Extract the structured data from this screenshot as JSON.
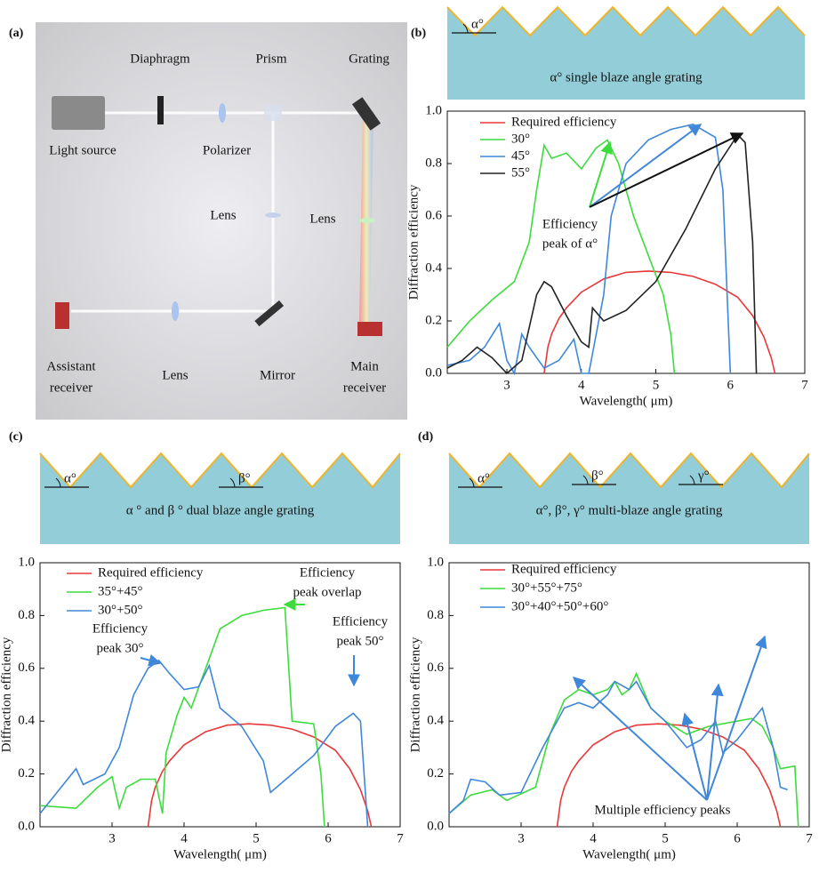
{
  "setup": {
    "panel_label": "(a)",
    "labels": [
      [
        "Diaphragm"
      ],
      [
        "Prism"
      ],
      [
        "Grating"
      ],
      [
        "Light source"
      ],
      [
        "Polarizer"
      ],
      [
        "Lens"
      ],
      [
        "Lens"
      ],
      [
        "Assistant",
        "receiver"
      ],
      [
        "Lens"
      ],
      [
        "Mirror"
      ],
      [
        "Main",
        "receiver"
      ]
    ]
  },
  "chart_data": [
    {
      "type": "line",
      "panel_label": "(b)",
      "diagram": {
        "caption": "α° single blaze angle grating",
        "angle_labels": [
          "α°"
        ]
      },
      "xlabel": "Wavelength( μm)",
      "ylabel": "Diffraction efficiency",
      "xlim": [
        2.2,
        7
      ],
      "xticks": [
        3,
        4,
        5,
        6,
        7
      ],
      "ylim": [
        0,
        1
      ],
      "yticks": [
        {
          "value": 0,
          "label": "0.0"
        },
        0.2,
        0.4,
        0.6,
        0.8,
        {
          "value": 1,
          "label": "1.0"
        }
      ],
      "series": [
        {
          "name": "Required efficiency",
          "color": "#e8383a",
          "x": [
            3.5,
            3.55,
            3.6,
            3.7,
            3.8,
            4.0,
            4.3,
            4.6,
            4.9,
            5.2,
            5.5,
            5.8,
            6.1,
            6.3,
            6.45,
            6.55,
            6.6
          ],
          "values": [
            0,
            0.1,
            0.15,
            0.21,
            0.25,
            0.31,
            0.36,
            0.385,
            0.39,
            0.385,
            0.37,
            0.34,
            0.29,
            0.22,
            0.14,
            0.06,
            0
          ]
        },
        {
          "name": "30°",
          "color": "#3ddc3d",
          "x": [
            2.2,
            2.5,
            2.8,
            3.1,
            3.3,
            3.4,
            3.5,
            3.6,
            3.8,
            4.0,
            4.2,
            4.35,
            4.5,
            4.7,
            4.9,
            5.1,
            5.2,
            5.25
          ],
          "values": [
            0.1,
            0.2,
            0.28,
            0.35,
            0.5,
            0.7,
            0.87,
            0.82,
            0.84,
            0.78,
            0.86,
            0.89,
            0.8,
            0.6,
            0.45,
            0.3,
            0.15,
            0
          ]
        },
        {
          "name": "45°",
          "color": "#3f87d9",
          "x": [
            2.2,
            2.5,
            2.7,
            2.9,
            3.0,
            3.1,
            3.2,
            3.3,
            3.5,
            3.7,
            3.9,
            4.0,
            4.1,
            4.3,
            4.4,
            4.6,
            4.9,
            5.2,
            5.5,
            5.8,
            5.9,
            6.0
          ],
          "values": [
            0.03,
            0.05,
            0.1,
            0.19,
            0.05,
            0,
            0.15,
            0.1,
            0.02,
            0.05,
            0.13,
            0,
            0,
            0.3,
            0.6,
            0.8,
            0.89,
            0.93,
            0.95,
            0.9,
            0.7,
            0
          ]
        },
        {
          "name": "55°",
          "color": "#222222",
          "x": [
            2.2,
            2.4,
            2.6,
            2.8,
            3.0,
            3.2,
            3.4,
            3.5,
            3.6,
            3.8,
            4.0,
            4.1,
            4.15,
            4.3,
            4.6,
            5.0,
            5.4,
            5.8,
            6.1,
            6.2,
            6.3,
            6.35
          ],
          "values": [
            0.02,
            0.05,
            0.1,
            0.06,
            0,
            0.05,
            0.3,
            0.35,
            0.33,
            0.22,
            0.12,
            0.1,
            0.25,
            0.2,
            0.24,
            0.35,
            0.55,
            0.78,
            0.91,
            0.88,
            0.5,
            0
          ]
        }
      ],
      "annotations": [
        {
          "text": [
            "Efficiency",
            "peak of α°"
          ]
        }
      ]
    },
    {
      "type": "line",
      "panel_label": "(c)",
      "diagram": {
        "caption": "α ° and β ° dual blaze angle grating",
        "angle_labels": [
          "α°",
          "β°"
        ]
      },
      "xlabel": "Wavelength( μm)",
      "ylabel": "Diffraction efficiency",
      "xlim": [
        2,
        7
      ],
      "xticks": [
        3,
        4,
        5,
        6,
        7
      ],
      "ylim": [
        0,
        1
      ],
      "yticks": [
        {
          "value": 0,
          "label": "0.0"
        },
        0.2,
        0.4,
        0.6,
        0.8,
        {
          "value": 1,
          "label": "1.0"
        }
      ],
      "series": [
        {
          "name": "Required efficiency",
          "color": "#e8383a",
          "x": [
            3.5,
            3.55,
            3.6,
            3.7,
            3.8,
            4.0,
            4.3,
            4.6,
            4.9,
            5.2,
            5.5,
            5.8,
            6.1,
            6.3,
            6.45,
            6.55,
            6.6
          ],
          "values": [
            0,
            0.1,
            0.15,
            0.21,
            0.25,
            0.31,
            0.36,
            0.385,
            0.39,
            0.385,
            0.37,
            0.34,
            0.29,
            0.22,
            0.14,
            0.06,
            0
          ]
        },
        {
          "name": "35°+45°",
          "color": "#3ddc3d",
          "x": [
            2,
            2.5,
            2.8,
            3.0,
            3.1,
            3.2,
            3.4,
            3.6,
            3.7,
            3.75,
            3.9,
            4.0,
            4.1,
            4.3,
            4.5,
            4.8,
            5.1,
            5.4,
            5.5,
            5.8,
            5.9,
            5.95
          ],
          "values": [
            0.08,
            0.07,
            0.15,
            0.19,
            0.07,
            0.15,
            0.18,
            0.18,
            0.05,
            0.28,
            0.42,
            0.49,
            0.45,
            0.6,
            0.75,
            0.8,
            0.82,
            0.83,
            0.4,
            0.39,
            0.2,
            0
          ]
        },
        {
          "name": "30°+50°",
          "color": "#3f87d9",
          "x": [
            2,
            2.5,
            2.6,
            2.9,
            3.1,
            3.3,
            3.5,
            3.65,
            3.8,
            4.0,
            4.2,
            4.35,
            4.5,
            4.8,
            5.1,
            5.2,
            5.5,
            5.8,
            6.1,
            6.35,
            6.45,
            6.55
          ],
          "values": [
            0.05,
            0.22,
            0.16,
            0.2,
            0.3,
            0.5,
            0.6,
            0.63,
            0.58,
            0.52,
            0.53,
            0.61,
            0.45,
            0.38,
            0.25,
            0.13,
            0.2,
            0.27,
            0.38,
            0.43,
            0.4,
            0
          ]
        }
      ],
      "annotations": [
        {
          "text": [
            "Efficiency",
            "peak overlap"
          ]
        },
        {
          "text": [
            "Efficiency",
            "peak 30°"
          ]
        },
        {
          "text": [
            "Efficiency",
            "peak 50°"
          ]
        }
      ]
    },
    {
      "type": "line",
      "panel_label": "(d)",
      "diagram": {
        "caption": "α°, β°, γ° multi-blaze angle grating",
        "angle_labels": [
          "α°",
          "β°",
          "γ°"
        ]
      },
      "xlabel": "Wavelength( μm)",
      "ylabel": "Diffraction efficiency",
      "xlim": [
        2,
        7
      ],
      "xticks": [
        3,
        4,
        5,
        6,
        7
      ],
      "ylim": [
        0,
        1
      ],
      "yticks": [
        {
          "value": 0,
          "label": "0.0"
        },
        0.2,
        0.4,
        0.6,
        0.8,
        {
          "value": 1,
          "label": "1.0"
        }
      ],
      "series": [
        {
          "name": "Required efficiency",
          "color": "#e8383a",
          "x": [
            3.5,
            3.55,
            3.6,
            3.7,
            3.8,
            4.0,
            4.3,
            4.6,
            4.9,
            5.2,
            5.5,
            5.8,
            6.1,
            6.3,
            6.45,
            6.55,
            6.6
          ],
          "values": [
            0,
            0.1,
            0.15,
            0.21,
            0.25,
            0.31,
            0.36,
            0.385,
            0.39,
            0.385,
            0.37,
            0.34,
            0.29,
            0.22,
            0.14,
            0.06,
            0
          ]
        },
        {
          "name": "30°+55°+75°",
          "color": "#3ddc3d",
          "x": [
            2,
            2.3,
            2.6,
            2.8,
            3.2,
            3.4,
            3.6,
            3.8,
            4.0,
            4.2,
            4.3,
            4.4,
            4.5,
            4.6,
            4.8,
            5.0,
            5.3,
            5.6,
            6.0,
            6.2,
            6.35,
            6.5,
            6.6,
            6.8,
            6.85
          ],
          "values": [
            0.05,
            0.12,
            0.14,
            0.1,
            0.15,
            0.35,
            0.48,
            0.52,
            0.5,
            0.52,
            0.55,
            0.5,
            0.52,
            0.58,
            0.45,
            0.4,
            0.35,
            0.38,
            0.4,
            0.41,
            0.38,
            0.3,
            0.22,
            0.23,
            0
          ]
        },
        {
          "name": "30°+40°+50°+60°",
          "color": "#3f87d9",
          "x": [
            2,
            2.2,
            2.3,
            2.5,
            2.7,
            3.0,
            3.3,
            3.6,
            3.8,
            4.0,
            4.2,
            4.3,
            4.5,
            4.6,
            4.8,
            5.0,
            5.3,
            5.5,
            5.7,
            5.8,
            6.0,
            6.2,
            6.35,
            6.5,
            6.6,
            6.7
          ],
          "values": [
            0.05,
            0.1,
            0.18,
            0.17,
            0.12,
            0.13,
            0.3,
            0.45,
            0.47,
            0.45,
            0.5,
            0.55,
            0.52,
            0.55,
            0.45,
            0.4,
            0.3,
            0.33,
            0.4,
            0.28,
            0.33,
            0.4,
            0.45,
            0.3,
            0.15,
            0.14
          ]
        }
      ],
      "annotations": [
        {
          "text": [
            "Multiple efficiency peaks"
          ]
        }
      ]
    }
  ]
}
